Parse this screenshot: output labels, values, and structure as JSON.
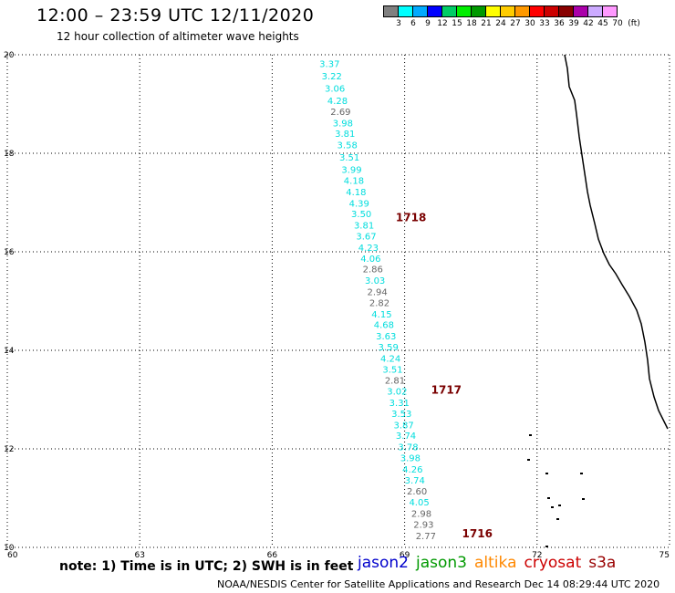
{
  "title": "12:00 – 23:59 UTC 12/11/2020",
  "subtitle": "12 hour collection of altimeter wave heights",
  "note": "note: 1) Time is in UTC; 2) SWH is in feet",
  "credit": "NOAA/NESDIS Center for Satellite Applications and Research   Dec 14 08:29:44 UTC 2020",
  "satellites": [
    {
      "label": "jason2",
      "color": "#0000cc"
    },
    {
      "label": "jason3",
      "color": "#009900"
    },
    {
      "label": "altika",
      "color": "#ff8800"
    },
    {
      "label": "cryosat",
      "color": "#cc0000"
    },
    {
      "label": "s3a",
      "color": "#990000"
    }
  ],
  "color_scale": {
    "unit": "(ft)",
    "labels": [
      "3",
      "6",
      "9",
      "12",
      "15",
      "18",
      "21",
      "24",
      "27",
      "30",
      "33",
      "36",
      "39",
      "42",
      "45",
      "70"
    ],
    "colors": [
      "#808080",
      "#00ffff",
      "#00aaff",
      "#0000ff",
      "#00cc66",
      "#00ee00",
      "#009900",
      "#ffff00",
      "#ffcc00",
      "#ff9900",
      "#ff0000",
      "#cc0000",
      "#880000",
      "#aa00aa",
      "#ccaaff",
      "#ff99ff"
    ]
  },
  "axes": {
    "lon_labels": [
      "60",
      "63",
      "66",
      "69",
      "72",
      "75"
    ],
    "lat_labels": [
      "10",
      "12",
      "14",
      "16",
      "18",
      "20"
    ],
    "lon_range": [
      60,
      75
    ],
    "lat_range": [
      10,
      20
    ]
  },
  "observations": [
    {
      "value": "3.37",
      "lon": 67.3,
      "lat": 19.75,
      "color": "#00dddd"
    },
    {
      "value": "3.22",
      "lon": 67.35,
      "lat": 19.5,
      "color": "#00dddd"
    },
    {
      "value": "3.06",
      "lon": 67.42,
      "lat": 19.25,
      "color": "#00dddd"
    },
    {
      "value": "4.28",
      "lon": 67.48,
      "lat": 19.0,
      "color": "#00dddd"
    },
    {
      "value": "2.69",
      "lon": 67.55,
      "lat": 18.78,
      "color": "#666666"
    },
    {
      "value": "3.98",
      "lon": 67.6,
      "lat": 18.55,
      "color": "#00dddd"
    },
    {
      "value": "3.81",
      "lon": 67.65,
      "lat": 18.33,
      "color": "#00dddd"
    },
    {
      "value": "3.58",
      "lon": 67.7,
      "lat": 18.1,
      "color": "#00dddd"
    },
    {
      "value": "3.51",
      "lon": 67.75,
      "lat": 17.85,
      "color": "#00dddd"
    },
    {
      "value": "3.99",
      "lon": 67.8,
      "lat": 17.6,
      "color": "#00dddd"
    },
    {
      "value": "4.18",
      "lon": 67.85,
      "lat": 17.38,
      "color": "#00dddd"
    },
    {
      "value": "4.18",
      "lon": 67.9,
      "lat": 17.15,
      "color": "#00dddd"
    },
    {
      "value": "4.39",
      "lon": 67.97,
      "lat": 16.92,
      "color": "#00dddd"
    },
    {
      "value": "3.50",
      "lon": 68.02,
      "lat": 16.7,
      "color": "#00dddd"
    },
    {
      "value": "3.81",
      "lon": 68.08,
      "lat": 16.47,
      "color": "#00dddd"
    },
    {
      "value": "3.67",
      "lon": 68.13,
      "lat": 16.25,
      "color": "#00dddd"
    },
    {
      "value": "4.23",
      "lon": 68.18,
      "lat": 16.02,
      "color": "#00dddd"
    },
    {
      "value": "4.06",
      "lon": 68.23,
      "lat": 15.8,
      "color": "#00dddd"
    },
    {
      "value": "2.86",
      "lon": 68.28,
      "lat": 15.58,
      "color": "#666666"
    },
    {
      "value": "3.03",
      "lon": 68.33,
      "lat": 15.35,
      "color": "#00dddd"
    },
    {
      "value": "2.94",
      "lon": 68.38,
      "lat": 15.12,
      "color": "#666666"
    },
    {
      "value": "2.82",
      "lon": 68.43,
      "lat": 14.9,
      "color": "#666666"
    },
    {
      "value": "4.15",
      "lon": 68.48,
      "lat": 14.67,
      "color": "#00dddd"
    },
    {
      "value": "4.68",
      "lon": 68.53,
      "lat": 14.45,
      "color": "#00dddd"
    },
    {
      "value": "3.63",
      "lon": 68.58,
      "lat": 14.22,
      "color": "#00dddd"
    },
    {
      "value": "3.59",
      "lon": 68.63,
      "lat": 14.0,
      "color": "#00dddd"
    },
    {
      "value": "4.24",
      "lon": 68.68,
      "lat": 13.77,
      "color": "#00dddd"
    },
    {
      "value": "3.51",
      "lon": 68.73,
      "lat": 13.55,
      "color": "#00dddd"
    },
    {
      "value": "2.81",
      "lon": 68.78,
      "lat": 13.32,
      "color": "#666666"
    },
    {
      "value": "3.02",
      "lon": 68.83,
      "lat": 13.1,
      "color": "#00dddd"
    },
    {
      "value": "3.31",
      "lon": 68.88,
      "lat": 12.87,
      "color": "#00dddd"
    },
    {
      "value": "3.53",
      "lon": 68.93,
      "lat": 12.65,
      "color": "#00dddd"
    },
    {
      "value": "3.87",
      "lon": 68.98,
      "lat": 12.42,
      "color": "#00dddd"
    },
    {
      "value": "3.74",
      "lon": 69.03,
      "lat": 12.2,
      "color": "#00dddd"
    },
    {
      "value": "3.78",
      "lon": 69.08,
      "lat": 11.97,
      "color": "#00dddd"
    },
    {
      "value": "3.98",
      "lon": 69.13,
      "lat": 11.75,
      "color": "#00dddd"
    },
    {
      "value": "4.26",
      "lon": 69.18,
      "lat": 11.52,
      "color": "#00dddd"
    },
    {
      "value": "3.74",
      "lon": 69.23,
      "lat": 11.3,
      "color": "#00dddd"
    },
    {
      "value": "2.60",
      "lon": 69.28,
      "lat": 11.07,
      "color": "#666666"
    },
    {
      "value": "4.05",
      "lon": 69.33,
      "lat": 10.85,
      "color": "#00dddd"
    },
    {
      "value": "2.98",
      "lon": 69.38,
      "lat": 10.62,
      "color": "#666666"
    },
    {
      "value": "2.93",
      "lon": 69.43,
      "lat": 10.4,
      "color": "#666666"
    },
    {
      "value": "2.77",
      "lon": 69.48,
      "lat": 10.17,
      "color": "#666666"
    }
  ],
  "revolutions": [
    {
      "label": "1718",
      "lon": 68.8,
      "lat": 16.62
    },
    {
      "label": "1717",
      "lon": 69.6,
      "lat": 13.12
    },
    {
      "label": "1716",
      "lon": 70.3,
      "lat": 10.2
    }
  ]
}
